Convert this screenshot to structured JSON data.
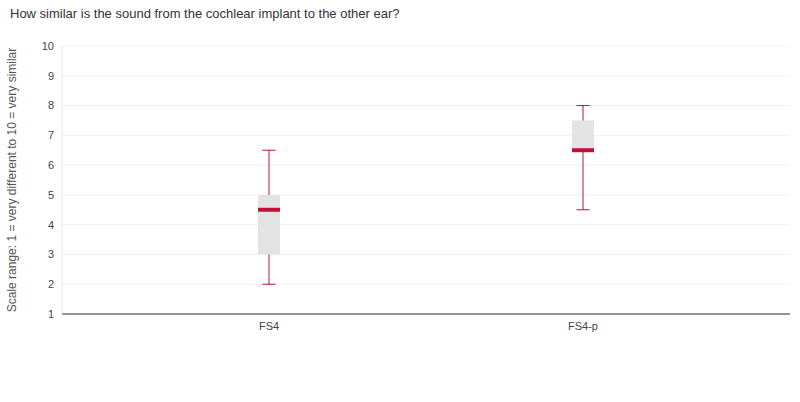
{
  "chart_data": {
    "type": "box",
    "title": "How similar is the sound from the cochlear implant to the other ear?",
    "y_label": "Scale range: 1 = very different to 10 = very similar",
    "categories": [
      "FS4",
      "FS4-p"
    ],
    "min": [
      2,
      4.5
    ],
    "q1": [
      3,
      6.5
    ],
    "median": [
      4.5,
      6.5
    ],
    "q3": [
      5,
      7.5
    ],
    "max": [
      6.5,
      8
    ],
    "color": "#c0103a",
    "ylim": [
      1,
      10
    ],
    "yticks": [
      1,
      2,
      3,
      4,
      5,
      6,
      7,
      8,
      9,
      10
    ],
    "grid": true
  }
}
